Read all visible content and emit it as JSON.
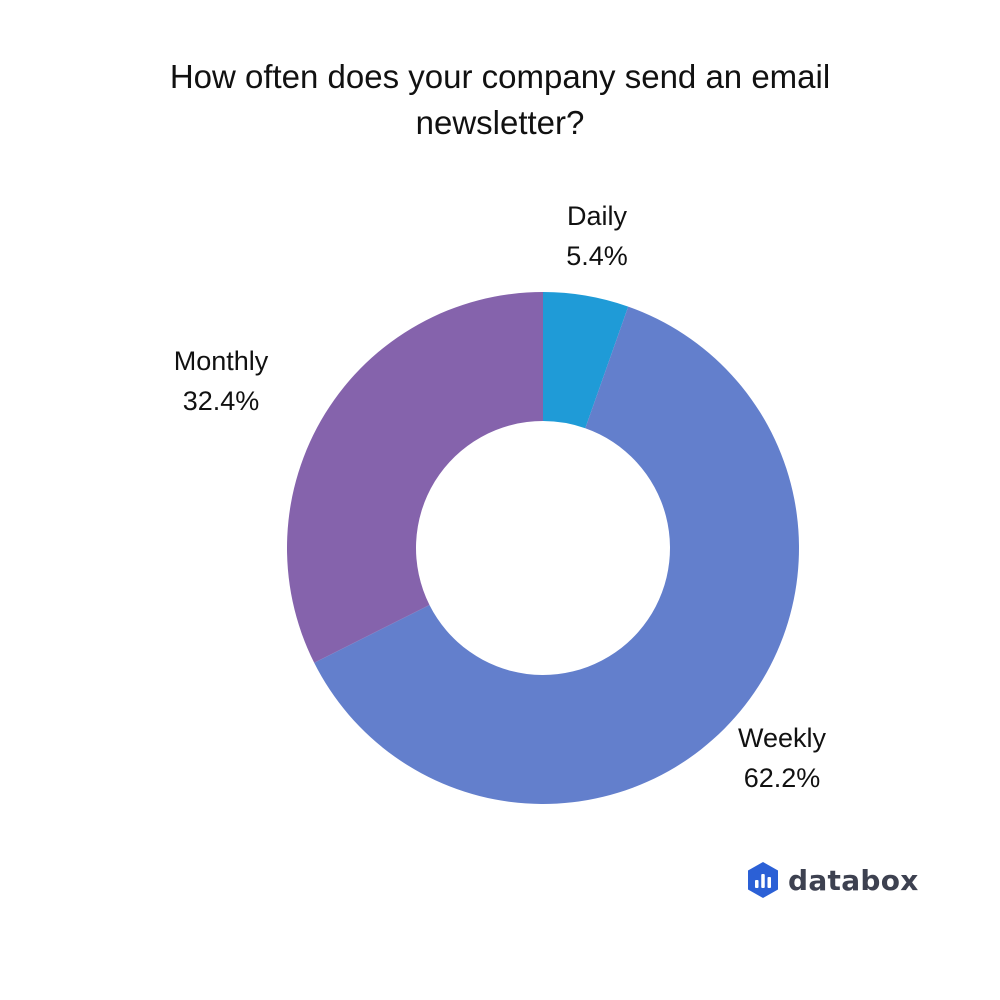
{
  "chart_data": {
    "type": "pie",
    "title": "How often does your company send an email newsletter?",
    "donut": true,
    "slices": [
      {
        "label": "Daily",
        "value": 5.4,
        "display": "5.4%",
        "color": "#1f9bd7"
      },
      {
        "label": "Weekly",
        "value": 62.2,
        "display": "62.2%",
        "color": "#637fcc"
      },
      {
        "label": "Monthly",
        "value": 32.4,
        "display": "32.4%",
        "color": "#8563ac"
      }
    ],
    "start_direction": "top",
    "order": "clockwise"
  },
  "brand": {
    "name": "databox",
    "icon": "databox-logo-icon",
    "colors": [
      "#2b60d6",
      "#1e45b8"
    ]
  }
}
